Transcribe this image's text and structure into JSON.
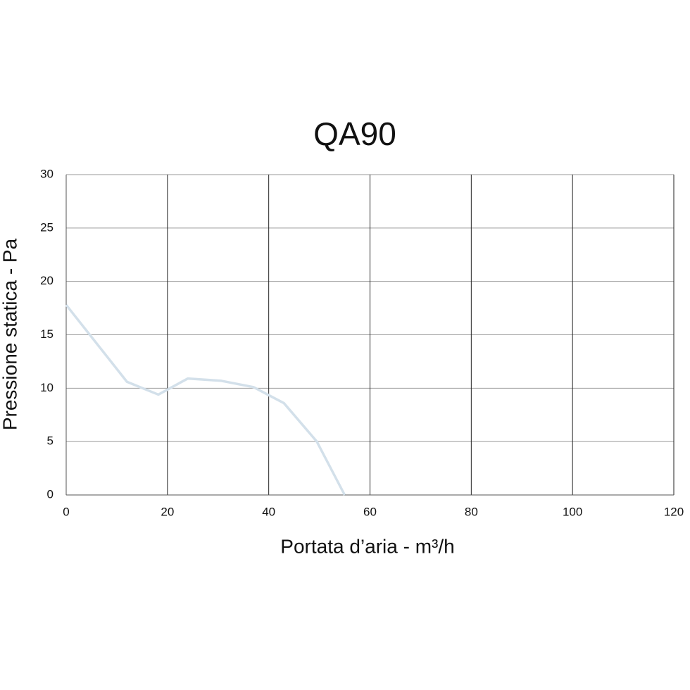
{
  "chart_data": {
    "type": "line",
    "title": "QA90",
    "x_label": "Portata d’aria - m³/h",
    "y_label": "Pressione statica - Pa",
    "series": [
      {
        "name": "QA90",
        "color": "#d3e0ea",
        "x": [
          0,
          12,
          18.2,
          24,
          30.5,
          37,
          43,
          49.5,
          55
        ],
        "values": [
          17.8,
          10.6,
          9.4,
          10.9,
          10.7,
          10.1,
          8.6,
          5,
          0
        ]
      }
    ],
    "xlim": [
      0,
      120
    ],
    "xticks": [
      0,
      20,
      40,
      60,
      80,
      100,
      120
    ],
    "ylim": [
      0,
      30
    ],
    "yticks": [
      0,
      5,
      10,
      15,
      20,
      25,
      30
    ],
    "grid": true
  }
}
